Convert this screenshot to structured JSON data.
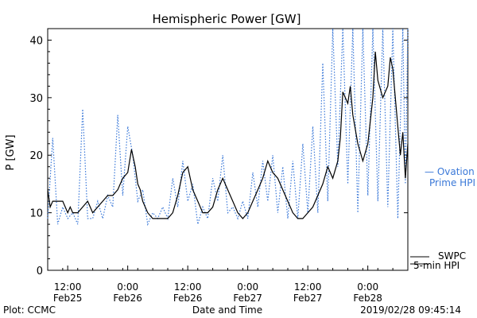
{
  "chart_data": {
    "type": "line",
    "title": "Hemispheric Power [GW]",
    "ylabel": "P [GW]",
    "xlabel": "Date and Time",
    "ylim": [
      0,
      42
    ],
    "yticks": [
      0,
      10,
      20,
      30,
      40
    ],
    "x_start": "2019-02-25T08:00",
    "x_end": "2019-02-28T08:00",
    "x_unit": "hours",
    "xticks": [
      {
        "x": "2019-02-25T12:00",
        "time": "12:00",
        "date": "Feb25"
      },
      {
        "x": "2019-02-26T00:00",
        "time": "0:00",
        "date": "Feb26"
      },
      {
        "x": "2019-02-26T12:00",
        "time": "12:00",
        "date": "Feb26"
      },
      {
        "x": "2019-02-27T00:00",
        "time": "0:00",
        "date": "Feb27"
      },
      {
        "x": "2019-02-27T12:00",
        "time": "12:00",
        "date": "Feb27"
      },
      {
        "x": "2019-02-28T00:00",
        "time": "0:00",
        "date": "Feb28"
      }
    ],
    "grid": false,
    "series": [
      {
        "name": "SWPC 5-min HPI",
        "color": "#000000",
        "style": "solid",
        "points": [
          [
            "2019-02-25T08:00",
            14
          ],
          [
            "2019-02-25T08:30",
            11
          ],
          [
            "2019-02-25T09:00",
            12
          ],
          [
            "2019-02-25T10:00",
            12
          ],
          [
            "2019-02-25T11:00",
            12
          ],
          [
            "2019-02-25T12:00",
            10
          ],
          [
            "2019-02-25T12:30",
            11
          ],
          [
            "2019-02-25T13:00",
            10
          ],
          [
            "2019-02-25T14:00",
            10
          ],
          [
            "2019-02-25T15:00",
            11
          ],
          [
            "2019-02-25T16:00",
            12
          ],
          [
            "2019-02-25T17:00",
            10
          ],
          [
            "2019-02-25T18:00",
            11
          ],
          [
            "2019-02-25T19:00",
            12
          ],
          [
            "2019-02-25T20:00",
            13
          ],
          [
            "2019-02-25T21:00",
            13
          ],
          [
            "2019-02-25T22:00",
            14
          ],
          [
            "2019-02-25T23:00",
            16
          ],
          [
            "2019-02-26T00:00",
            17
          ],
          [
            "2019-02-26T00:45",
            21
          ],
          [
            "2019-02-26T01:30",
            18
          ],
          [
            "2019-02-26T02:00",
            15
          ],
          [
            "2019-02-26T02:30",
            14
          ],
          [
            "2019-02-26T03:00",
            12
          ],
          [
            "2019-02-26T04:00",
            10
          ],
          [
            "2019-02-26T05:00",
            9
          ],
          [
            "2019-02-26T06:00",
            9
          ],
          [
            "2019-02-26T07:00",
            9
          ],
          [
            "2019-02-26T08:00",
            9
          ],
          [
            "2019-02-26T09:00",
            10
          ],
          [
            "2019-02-26T10:00",
            13
          ],
          [
            "2019-02-26T11:00",
            17
          ],
          [
            "2019-02-26T12:00",
            18
          ],
          [
            "2019-02-26T12:30",
            16
          ],
          [
            "2019-02-26T13:00",
            14
          ],
          [
            "2019-02-26T14:00",
            12
          ],
          [
            "2019-02-26T15:00",
            10
          ],
          [
            "2019-02-26T16:00",
            10
          ],
          [
            "2019-02-26T17:00",
            11
          ],
          [
            "2019-02-26T18:00",
            14
          ],
          [
            "2019-02-26T19:00",
            16
          ],
          [
            "2019-02-26T20:00",
            14
          ],
          [
            "2019-02-26T21:00",
            12
          ],
          [
            "2019-02-26T22:00",
            10
          ],
          [
            "2019-02-26T23:00",
            9
          ],
          [
            "2019-02-27T00:00",
            10
          ],
          [
            "2019-02-27T01:00",
            12
          ],
          [
            "2019-02-27T02:00",
            14
          ],
          [
            "2019-02-27T03:00",
            16
          ],
          [
            "2019-02-27T04:00",
            19
          ],
          [
            "2019-02-27T05:00",
            17
          ],
          [
            "2019-02-27T06:00",
            16
          ],
          [
            "2019-02-27T07:00",
            14
          ],
          [
            "2019-02-27T08:00",
            12
          ],
          [
            "2019-02-27T09:00",
            10
          ],
          [
            "2019-02-27T10:00",
            9
          ],
          [
            "2019-02-27T11:00",
            9
          ],
          [
            "2019-02-27T12:00",
            10
          ],
          [
            "2019-02-27T13:00",
            11
          ],
          [
            "2019-02-27T14:00",
            13
          ],
          [
            "2019-02-27T15:00",
            15
          ],
          [
            "2019-02-27T16:00",
            18
          ],
          [
            "2019-02-27T17:00",
            16
          ],
          [
            "2019-02-27T18:00",
            19
          ],
          [
            "2019-02-27T18:30",
            23
          ],
          [
            "2019-02-27T19:00",
            31
          ],
          [
            "2019-02-27T20:00",
            29
          ],
          [
            "2019-02-27T20:30",
            32
          ],
          [
            "2019-02-27T21:00",
            27
          ],
          [
            "2019-02-27T22:00",
            22
          ],
          [
            "2019-02-27T23:00",
            19
          ],
          [
            "2019-02-28T00:00",
            22
          ],
          [
            "2019-02-28T01:00",
            30
          ],
          [
            "2019-02-28T01:30",
            38
          ],
          [
            "2019-02-28T02:00",
            33
          ],
          [
            "2019-02-28T03:00",
            30
          ],
          [
            "2019-02-28T04:00",
            32
          ],
          [
            "2019-02-28T04:30",
            37
          ],
          [
            "2019-02-28T05:00",
            35
          ],
          [
            "2019-02-28T06:00",
            25
          ],
          [
            "2019-02-28T06:30",
            20
          ],
          [
            "2019-02-28T07:00",
            24
          ],
          [
            "2019-02-28T07:30",
            16
          ],
          [
            "2019-02-28T08:00",
            22
          ]
        ]
      },
      {
        "name": "Ovation Prime HPI",
        "color": "#3a78d8",
        "style": "dotted",
        "points": [
          [
            "2019-02-25T08:00",
            9
          ],
          [
            "2019-02-25T09:00",
            23
          ],
          [
            "2019-02-25T10:00",
            8
          ],
          [
            "2019-02-25T11:00",
            11
          ],
          [
            "2019-02-25T12:00",
            9
          ],
          [
            "2019-02-25T13:00",
            10
          ],
          [
            "2019-02-25T14:00",
            8
          ],
          [
            "2019-02-25T15:00",
            28
          ],
          [
            "2019-02-25T16:00",
            9
          ],
          [
            "2019-02-25T17:00",
            9
          ],
          [
            "2019-02-25T18:00",
            12
          ],
          [
            "2019-02-25T19:00",
            9
          ],
          [
            "2019-02-25T20:00",
            13
          ],
          [
            "2019-02-25T21:00",
            11
          ],
          [
            "2019-02-25T22:00",
            27
          ],
          [
            "2019-02-25T23:00",
            13
          ],
          [
            "2019-02-26T00:00",
            25
          ],
          [
            "2019-02-26T01:00",
            20
          ],
          [
            "2019-02-26T02:00",
            12
          ],
          [
            "2019-02-26T03:00",
            14
          ],
          [
            "2019-02-26T04:00",
            8
          ],
          [
            "2019-02-26T05:00",
            10
          ],
          [
            "2019-02-26T06:00",
            9
          ],
          [
            "2019-02-26T07:00",
            11
          ],
          [
            "2019-02-26T08:00",
            9
          ],
          [
            "2019-02-26T09:00",
            16
          ],
          [
            "2019-02-26T10:00",
            11
          ],
          [
            "2019-02-26T11:00",
            19
          ],
          [
            "2019-02-26T12:00",
            12
          ],
          [
            "2019-02-26T13:00",
            15
          ],
          [
            "2019-02-26T14:00",
            8
          ],
          [
            "2019-02-26T15:00",
            11
          ],
          [
            "2019-02-26T16:00",
            9
          ],
          [
            "2019-02-26T17:00",
            16
          ],
          [
            "2019-02-26T18:00",
            12
          ],
          [
            "2019-02-26T19:00",
            20
          ],
          [
            "2019-02-26T20:00",
            10
          ],
          [
            "2019-02-26T21:00",
            11
          ],
          [
            "2019-02-26T22:00",
            9
          ],
          [
            "2019-02-26T23:00",
            12
          ],
          [
            "2019-02-27T00:00",
            9
          ],
          [
            "2019-02-27T01:00",
            17
          ],
          [
            "2019-02-27T02:00",
            11
          ],
          [
            "2019-02-27T03:00",
            19
          ],
          [
            "2019-02-27T04:00",
            12
          ],
          [
            "2019-02-27T05:00",
            20
          ],
          [
            "2019-02-27T06:00",
            10
          ],
          [
            "2019-02-27T07:00",
            18
          ],
          [
            "2019-02-27T08:00",
            9
          ],
          [
            "2019-02-27T09:00",
            19
          ],
          [
            "2019-02-27T10:00",
            9
          ],
          [
            "2019-02-27T11:00",
            22
          ],
          [
            "2019-02-27T12:00",
            10
          ],
          [
            "2019-02-27T13:00",
            25
          ],
          [
            "2019-02-27T14:00",
            10
          ],
          [
            "2019-02-27T15:00",
            36
          ],
          [
            "2019-02-27T16:00",
            12
          ],
          [
            "2019-02-27T17:00",
            42
          ],
          [
            "2019-02-27T18:00",
            18
          ],
          [
            "2019-02-27T19:00",
            42
          ],
          [
            "2019-02-27T20:00",
            15
          ],
          [
            "2019-02-27T21:00",
            42
          ],
          [
            "2019-02-27T22:00",
            10
          ],
          [
            "2019-02-27T23:00",
            42
          ],
          [
            "2019-02-28T00:00",
            13
          ],
          [
            "2019-02-28T01:00",
            42
          ],
          [
            "2019-02-28T02:00",
            12
          ],
          [
            "2019-02-28T03:00",
            42
          ],
          [
            "2019-02-28T04:00",
            11
          ],
          [
            "2019-02-28T05:00",
            42
          ],
          [
            "2019-02-28T06:00",
            9
          ],
          [
            "2019-02-28T07:00",
            42
          ],
          [
            "2019-02-28T07:30",
            15
          ],
          [
            "2019-02-28T08:00",
            42
          ]
        ]
      }
    ],
    "side_labels": {
      "ovation_line1": "— Ovation",
      "ovation_line2": "Prime HPI",
      "swpc_line1": "SWPC",
      "swpc_line2": "5-min HPI"
    },
    "footer": {
      "plot_credit": "Plot: CCMC",
      "timestamp": "2019/02/28 09:45:14"
    },
    "colors": {
      "axis": "#000000",
      "ovation": "#3a78d8",
      "swpc": "#000000"
    }
  }
}
